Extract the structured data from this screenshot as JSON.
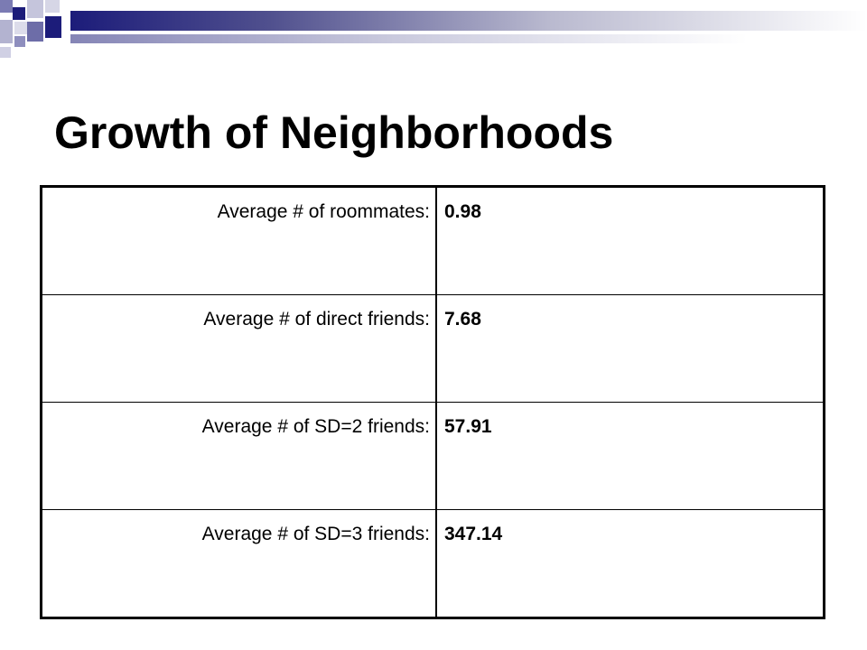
{
  "slide": {
    "title": "Growth of Neighborhoods"
  },
  "theme": {
    "accent_dark": "#1c1c7a",
    "accent_mid": "#6d6da8",
    "accent_light": "#b9b9cf"
  },
  "table": {
    "rows": [
      {
        "label": "Average  # of roommates:",
        "value": "0.98"
      },
      {
        "label": "Average  # of direct friends:",
        "value": "7.68"
      },
      {
        "label": "Average  # of SD=2 friends:",
        "value": "57.91"
      },
      {
        "label": "Average  # of SD=3 friends:",
        "value": "347.14"
      }
    ]
  }
}
